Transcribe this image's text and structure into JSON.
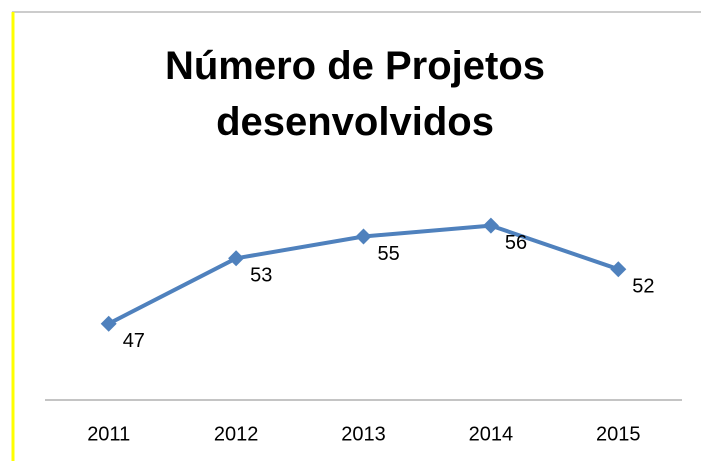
{
  "chart_data": {
    "type": "line",
    "title": "Número de Projetos desenvolvidos",
    "categories": [
      "2011",
      "2012",
      "2013",
      "2014",
      "2015"
    ],
    "values": [
      47,
      53,
      55,
      56,
      52
    ],
    "color": "#4f81bd",
    "ylim": [
      40,
      60
    ],
    "data_labels": true
  }
}
